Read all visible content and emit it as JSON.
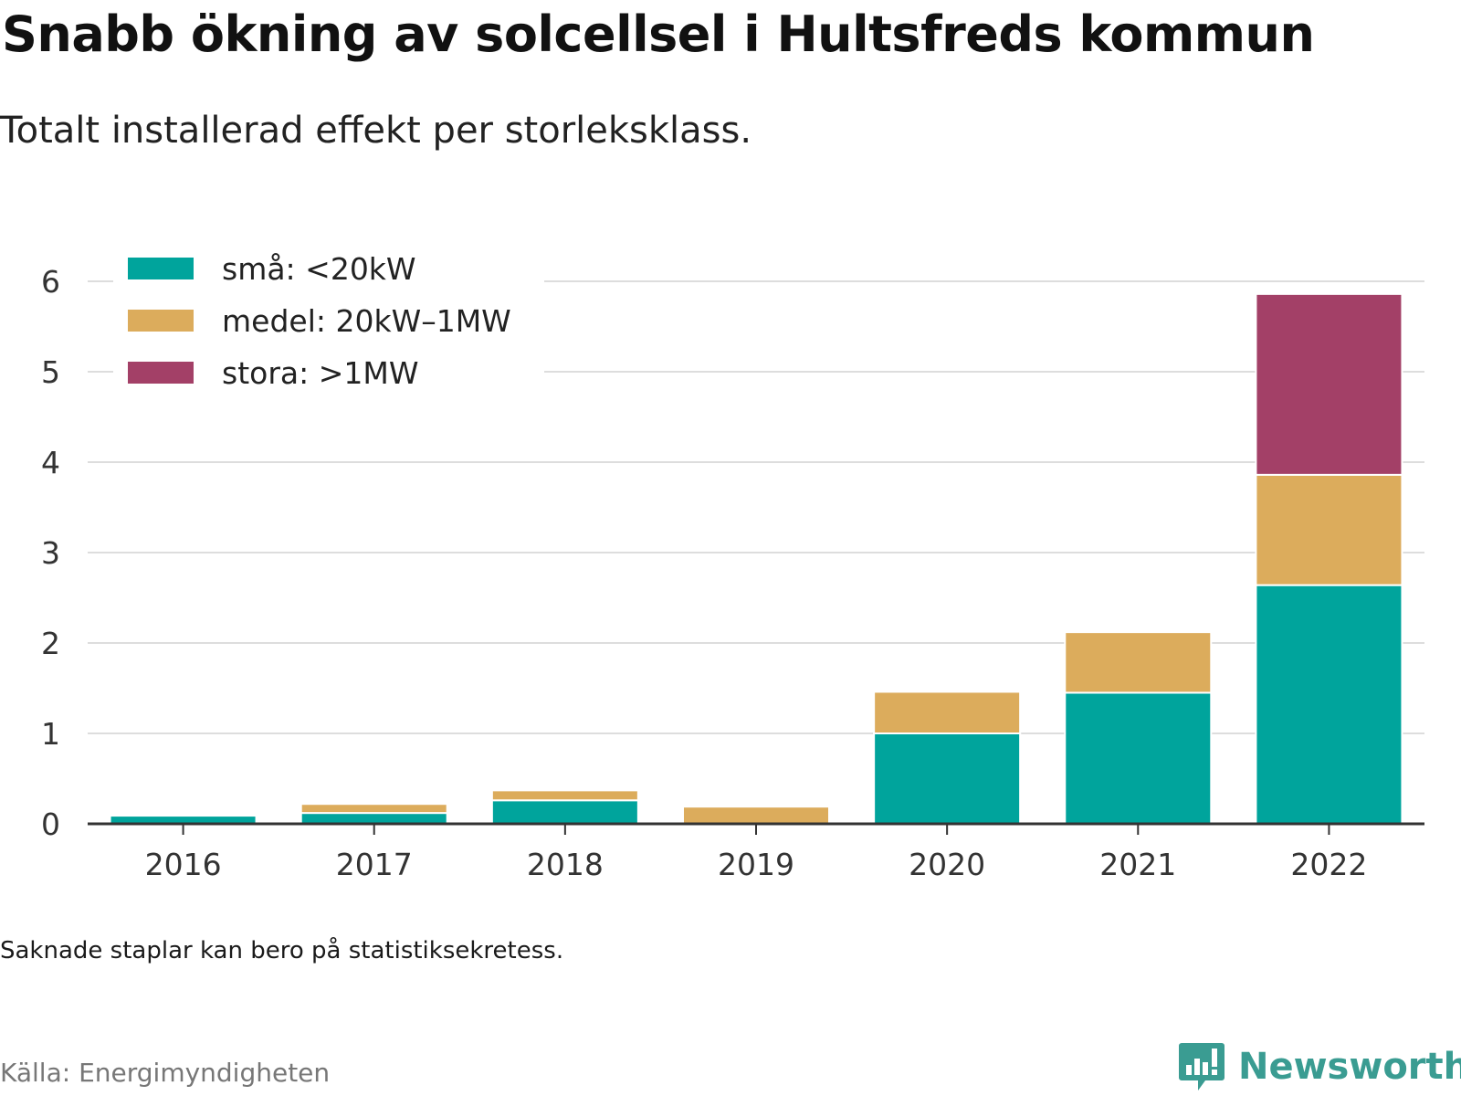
{
  "header": {
    "title": "Snabb ökning av solcellsel i Hultsfreds kommun",
    "subtitle": "Totalt installerad effekt per storleksklass."
  },
  "footer": {
    "note": "Saknade staplar kan bero på statistiksekretess.",
    "source": "Källa: Energimyndigheten",
    "brand": "Newsworthy",
    "brand_icon": "newsworthy-logo-icon"
  },
  "colors": {
    "small": "#00a49c",
    "medium": "#dcac5c",
    "large": "#a34067",
    "grid": "#dddddd",
    "axis": "#333333"
  },
  "chart_data": {
    "type": "bar",
    "stacked": true,
    "title": "Snabb ökning av solcellsel i Hultsfreds kommun",
    "subtitle": "Totalt installerad effekt per storleksklass.",
    "xlabel": "",
    "ylabel": "",
    "ylim": [
      0,
      6
    ],
    "yticks": [
      0,
      1,
      2,
      3,
      4,
      5,
      6
    ],
    "grid": true,
    "legend_position": "top-left",
    "categories": [
      "2016",
      "2017",
      "2018",
      "2019",
      "2020",
      "2021",
      "2022"
    ],
    "series": [
      {
        "name": "små: <20kW",
        "color": "#00a49c",
        "values": [
          0.09,
          0.12,
          0.26,
          0,
          1.0,
          1.45,
          2.64
        ]
      },
      {
        "name": "medel: 20kW–1MW",
        "color": "#dcac5c",
        "values": [
          0,
          0.1,
          0.11,
          0.19,
          0.46,
          0.67,
          1.22
        ]
      },
      {
        "name": "stora: >1MW",
        "color": "#a34067",
        "values": [
          0,
          0,
          0,
          0,
          0,
          0,
          2.0
        ]
      }
    ]
  }
}
